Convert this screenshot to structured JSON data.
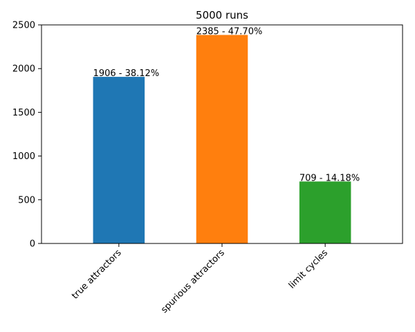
{
  "chart_data": {
    "type": "bar",
    "title": "5000 runs",
    "xlabel": "",
    "ylabel": "",
    "categories": [
      "true attractors",
      "spurious attractors",
      "limit cycles"
    ],
    "values": [
      1906,
      2385,
      709
    ],
    "data_labels": [
      "1906 - 38.12%",
      "2385 - 47.70%",
      "709 - 14.18%"
    ],
    "colors": [
      "#1f77b4",
      "#ff7f0e",
      "#2ca02c"
    ],
    "ylim": [
      0,
      2500
    ],
    "yticks": [
      0,
      500,
      1000,
      1500,
      2000,
      2500
    ],
    "grid": false,
    "legend": "none"
  }
}
